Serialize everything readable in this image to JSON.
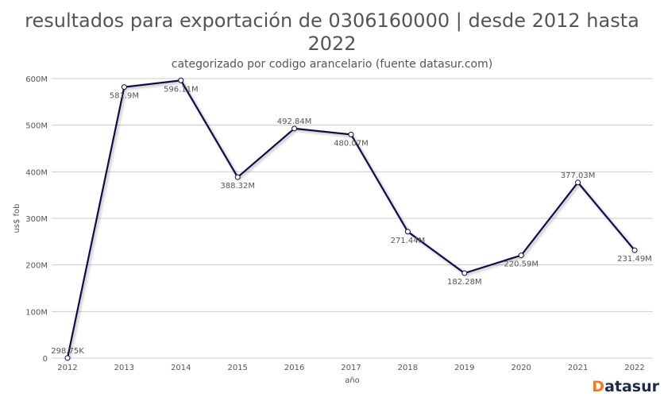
{
  "chart_data": {
    "type": "line",
    "title": "resultados para exportación de 0306160000 | desde 2012 hasta 2022",
    "subtitle": "categorizado por codigo arancelario (fuente datasur.com)",
    "xlabel": "año",
    "ylabel": "us$ fob",
    "categories": [
      "2012",
      "2013",
      "2014",
      "2015",
      "2016",
      "2017",
      "2018",
      "2019",
      "2020",
      "2021",
      "2022"
    ],
    "values": [
      0.29875,
      581.9,
      596.11,
      388.32,
      492.84,
      480.07,
      271.44,
      182.28,
      220.59,
      377.03,
      231.49
    ],
    "value_unit": "M",
    "data_labels": [
      "298.75K",
      "581.9M",
      "596.11M",
      "388.32M",
      "492.84M",
      "480.07M",
      "271.44M",
      "182.28M",
      "220.59M",
      "377.03M",
      "231.49M"
    ],
    "ylim": [
      0,
      600
    ],
    "yticks": [
      0,
      100,
      200,
      300,
      400,
      500,
      600
    ],
    "ytick_labels": [
      "0",
      "100M",
      "200M",
      "300M",
      "400M",
      "500M",
      "600M"
    ],
    "grid": true,
    "line_color": "#0d0a4a",
    "legend": "none"
  },
  "logo": {
    "first": "D",
    "rest": "atasur"
  }
}
